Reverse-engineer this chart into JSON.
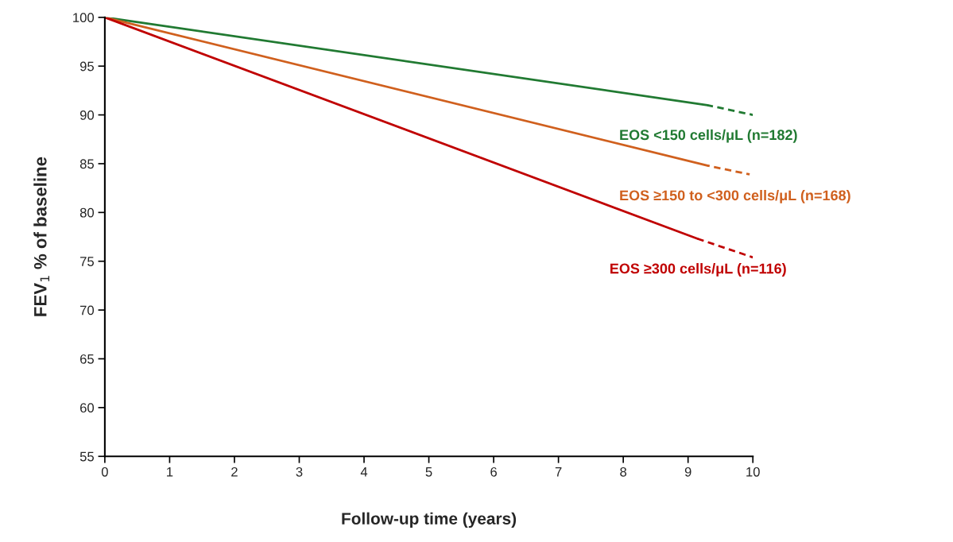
{
  "chart_data": {
    "type": "line",
    "xlabel": "Follow-up time (years)",
    "ylabel": "FEV$_{1}$ % of baseline",
    "xlim": [
      0,
      10
    ],
    "xticks": [
      0,
      1,
      2,
      3,
      4,
      5,
      6,
      7,
      8,
      9,
      10
    ],
    "ylim": [
      55,
      100
    ],
    "yticks": [
      55,
      60,
      65,
      70,
      75,
      80,
      85,
      90,
      95,
      100
    ],
    "grid": false,
    "legend": false,
    "series": [
      {
        "name": "EOS <150 cells/μL (n=182)",
        "color": "#217a32",
        "x": [
          0,
          9.3
        ],
        "values": [
          100,
          91.0
        ],
        "line_style": "solid"
      },
      {
        "color": "#217a32",
        "x": [
          9.3,
          10
        ],
        "values": [
          91.0,
          90.0
        ],
        "line_style": "dashed"
      },
      {
        "name": "EOS ≥150 to <300 cells/μL (n=168)",
        "color": "#d0601e",
        "x": [
          0,
          9.3
        ],
        "values": [
          100,
          84.8
        ],
        "line_style": "solid"
      },
      {
        "color": "#d0601e",
        "x": [
          9.3,
          9.95
        ],
        "values": [
          84.8,
          83.9
        ],
        "line_style": "dashed"
      },
      {
        "name": "EOS ≥300 cells/μL (n=116)",
        "color": "#c00000",
        "x": [
          0,
          9.15
        ],
        "values": [
          100,
          77.3
        ],
        "line_style": "solid"
      },
      {
        "color": "#c00000",
        "x": [
          9.15,
          10
        ],
        "values": [
          77.3,
          75.4
        ],
        "line_style": "dashed"
      }
    ]
  }
}
